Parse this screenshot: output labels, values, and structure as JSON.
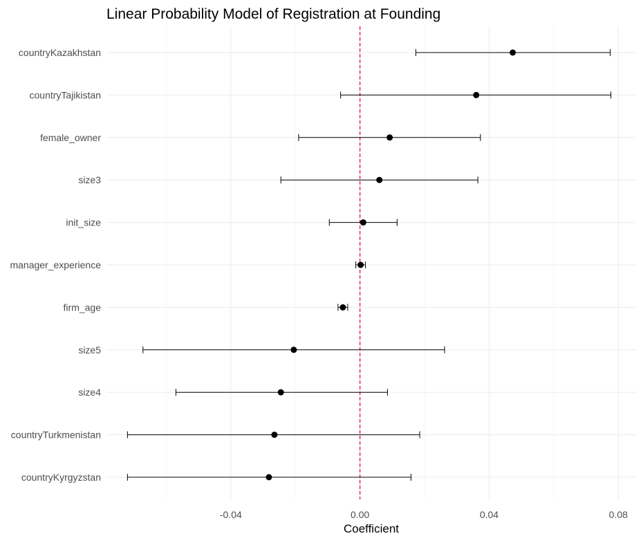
{
  "chart_data": {
    "type": "scatter",
    "title": "Linear Probability Model of Registration at Founding",
    "xlabel": "Coefficient",
    "ylabel": "",
    "xlim": [
      -0.0785,
      0.0855
    ],
    "x_ticks": [
      {
        "value": -0.04,
        "label": "-0.04"
      },
      {
        "value": 0.0,
        "label": "0.00"
      },
      {
        "value": 0.04,
        "label": "0.04"
      },
      {
        "value": 0.08,
        "label": "0.08"
      }
    ],
    "grid": true,
    "legend": "none",
    "reference_line": {
      "x": 0,
      "style": "dashed",
      "color": "#e8002d"
    },
    "point_color": "#000000",
    "terms": [
      {
        "label": "countryKazakhstan",
        "estimate": 0.0473,
        "ci_low": 0.0173,
        "ci_high": 0.0775
      },
      {
        "label": "countryTajikistan",
        "estimate": 0.036,
        "ci_low": -0.006,
        "ci_high": 0.0777
      },
      {
        "label": "female_owner",
        "estimate": 0.0092,
        "ci_low": -0.019,
        "ci_high": 0.0373
      },
      {
        "label": "size3",
        "estimate": 0.006,
        "ci_low": -0.0245,
        "ci_high": 0.0365
      },
      {
        "label": "init_size",
        "estimate": 0.001,
        "ci_low": -0.0095,
        "ci_high": 0.0115
      },
      {
        "label": "manager_experience",
        "estimate": 0.0002,
        "ci_low": -0.0013,
        "ci_high": 0.0017
      },
      {
        "label": "firm_age",
        "estimate": -0.0053,
        "ci_low": -0.0068,
        "ci_high": -0.0038
      },
      {
        "label": "size5",
        "estimate": -0.0205,
        "ci_low": -0.0672,
        "ci_high": 0.0262
      },
      {
        "label": "size4",
        "estimate": -0.0245,
        "ci_low": -0.057,
        "ci_high": 0.0085
      },
      {
        "label": "countryTurkmenistan",
        "estimate": -0.0265,
        "ci_low": -0.072,
        "ci_high": 0.0185
      },
      {
        "label": "countryKyrgyzstan",
        "estimate": -0.0282,
        "ci_low": -0.072,
        "ci_high": 0.0158
      }
    ]
  }
}
